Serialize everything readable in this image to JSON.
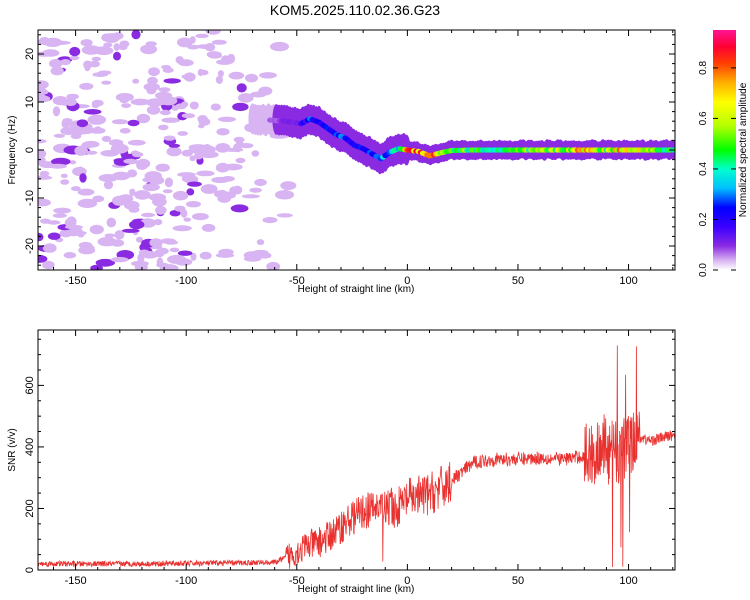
{
  "title": "KOM5.2025.110.02.36.G23",
  "chart_data": [
    {
      "type": "heatmap",
      "title": "",
      "xlabel": "Height of straight line (km)",
      "ylabel": "Frequency (Hz)",
      "xlim": [
        -167,
        121
      ],
      "ylim": [
        -25,
        25
      ],
      "x_ticks": [
        -150,
        -100,
        -50,
        0,
        50,
        100
      ],
      "x_tick_labels": [
        "-150",
        "-100",
        "-50",
        "0",
        "50",
        "100"
      ],
      "y_ticks": [
        20,
        10,
        0,
        -10,
        -20
      ],
      "y_tick_labels": [
        "20",
        "10",
        "0",
        "-10",
        "-20"
      ],
      "ridge": {
        "description_points_x": [
          -70,
          -55,
          -48,
          -44,
          -40,
          -36,
          -32,
          -28,
          -24,
          -20,
          -16,
          -12,
          -8,
          -4,
          0,
          5,
          10,
          15,
          20,
          30,
          40,
          50,
          60,
          70,
          80,
          90,
          100,
          110,
          121
        ],
        "frequency_hz": [
          6.5,
          6.0,
          5.5,
          6.5,
          5.8,
          4.5,
          3.2,
          2.5,
          1.0,
          0.3,
          -0.8,
          -1.8,
          -0.5,
          0.3,
          0.0,
          -0.3,
          -1.2,
          -0.6,
          -0.1,
          0.0,
          0.0,
          0.0,
          0.0,
          0.0,
          0.0,
          0.0,
          0.0,
          0.0,
          0.0
        ],
        "amplitude": [
          0.05,
          0.1,
          0.15,
          0.25,
          0.2,
          0.28,
          0.25,
          0.25,
          0.2,
          0.22,
          0.25,
          0.3,
          0.3,
          0.4,
          0.75,
          0.8,
          0.85,
          0.6,
          0.5,
          0.45,
          0.4,
          0.45,
          0.5,
          0.55,
          0.7,
          0.55,
          0.75,
          0.5,
          0.4
        ]
      },
      "noise_region_x": [
        -167,
        -60
      ]
    },
    {
      "type": "line",
      "title": "",
      "xlabel": "Height of straight line (km)",
      "ylabel": "SNR (v/v)",
      "xlim": [
        -167,
        121
      ],
      "ylim": [
        0,
        780
      ],
      "x_ticks": [
        -150,
        -100,
        -50,
        0,
        50,
        100
      ],
      "x_tick_labels": [
        "-150",
        "-100",
        "-50",
        "0",
        "50",
        "100"
      ],
      "y_ticks": [
        0,
        200,
        400,
        600
      ],
      "y_tick_labels": [
        "0",
        "200",
        "400",
        "600"
      ],
      "series": [
        {
          "color": "#e8312f",
          "x": [
            -167,
            -150,
            -120,
            -90,
            -60,
            -55,
            -50,
            -45,
            -40,
            -35,
            -30,
            -25,
            -20,
            -15,
            -10,
            -5,
            0,
            5,
            10,
            15,
            20,
            25,
            30,
            40,
            50,
            60,
            70,
            80,
            85,
            88,
            90,
            95,
            100,
            105,
            110,
            115,
            121
          ],
          "y": [
            20,
            20,
            20,
            22,
            25,
            40,
            60,
            80,
            90,
            110,
            140,
            170,
            190,
            200,
            210,
            200,
            230,
            240,
            245,
            265,
            290,
            320,
            350,
            360,
            360,
            365,
            360,
            370,
            380,
            420,
            380,
            390,
            400,
            430,
            420,
            430,
            440
          ]
        }
      ]
    }
  ],
  "colorbar": {
    "label": "Normalized spectral amplitude",
    "range": [
      0,
      0.95
    ],
    "ticks": [
      0.0,
      0.2,
      0.4,
      0.6,
      0.8
    ],
    "tick_labels": [
      "0.0",
      "0.2",
      "0.4",
      "0.6",
      "0.8"
    ]
  }
}
